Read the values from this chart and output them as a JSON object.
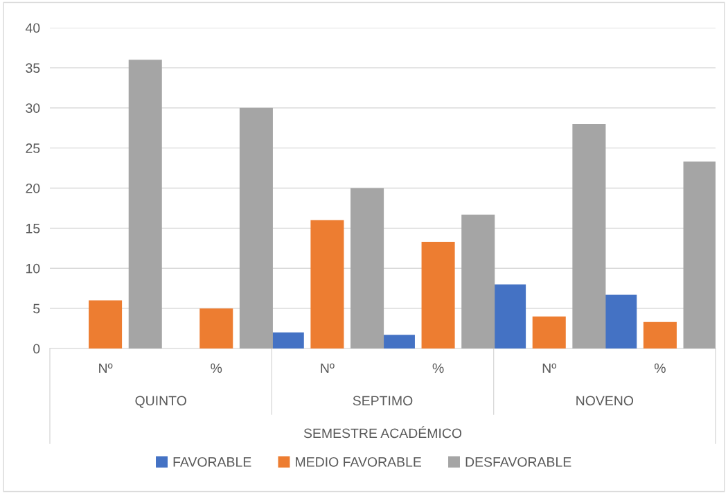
{
  "chart_data": {
    "type": "bar",
    "categories": [
      "Nº",
      "%",
      "Nº",
      "%",
      "Nº",
      "%"
    ],
    "annotations": [
      "QUINTO",
      "SEPTIMO",
      "NOVENO"
    ],
    "xlabel": "SEMESTRE ACADÉMICO",
    "series": [
      {
        "name": "FAVORABLE",
        "color": "#4472c4",
        "values": [
          0,
          0,
          2,
          1.7,
          8,
          6.7
        ]
      },
      {
        "name": "MEDIO FAVORABLE",
        "color": "#ed7d31",
        "values": [
          6,
          5,
          16,
          13.3,
          4,
          3.3
        ]
      },
      {
        "name": "DESFAVORABLE",
        "color": "#a5a5a5",
        "values": [
          36,
          30,
          20,
          16.7,
          28,
          23.3
        ]
      }
    ],
    "ylim": [
      0,
      40
    ],
    "yticks": [
      0,
      5,
      10,
      15,
      20,
      25,
      30,
      35,
      40
    ],
    "grid": "y",
    "legend": "bottom"
  }
}
